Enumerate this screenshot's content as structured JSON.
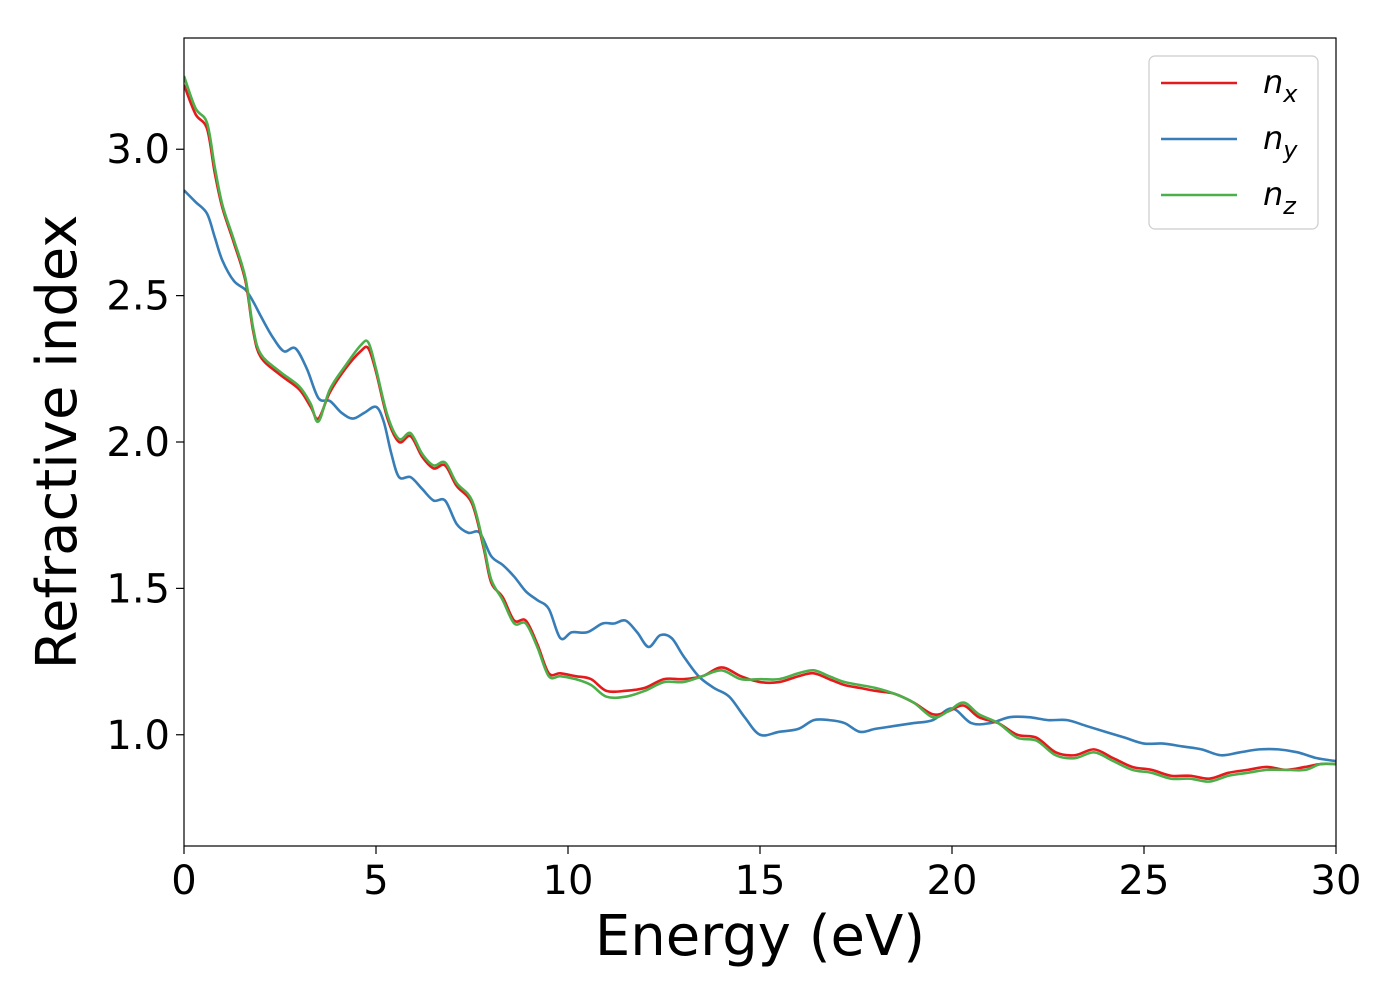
{
  "chart_data": {
    "type": "line",
    "title": "",
    "xlabel": "Energy (eV)",
    "ylabel": "Refractive index",
    "xlim": [
      0,
      30
    ],
    "ylim": [
      0.62,
      3.38
    ],
    "xticks": [
      0,
      5,
      10,
      15,
      20,
      25,
      30
    ],
    "xtick_labels": [
      "0",
      "5",
      "10",
      "15",
      "20",
      "25",
      "30"
    ],
    "yticks": [
      1.0,
      1.5,
      2.0,
      2.5,
      3.0
    ],
    "ytick_labels": [
      "1.0",
      "1.5",
      "2.0",
      "2.5",
      "3.0"
    ],
    "grid": false,
    "legend_position": "top-right",
    "series": [
      {
        "name": "n_x",
        "label_main": "n",
        "label_sub": "x",
        "color": "#e41a1c",
        "x": [
          0,
          0.3,
          0.6,
          0.8,
          1.0,
          1.3,
          1.6,
          1.8,
          2.0,
          2.5,
          3.0,
          3.3,
          3.5,
          3.8,
          4.2,
          4.6,
          4.8,
          5.0,
          5.3,
          5.6,
          5.9,
          6.2,
          6.5,
          6.8,
          7.1,
          7.5,
          7.8,
          8.0,
          8.3,
          8.6,
          8.9,
          9.2,
          9.5,
          9.8,
          10.2,
          10.6,
          11.0,
          11.5,
          12.0,
          12.5,
          13.0,
          13.5,
          14.0,
          14.5,
          15.0,
          15.5,
          16.0,
          16.4,
          16.8,
          17.2,
          17.6,
          18.0,
          18.5,
          19.0,
          19.5,
          19.9,
          20.3,
          20.7,
          21.2,
          21.7,
          22.2,
          22.7,
          23.2,
          23.7,
          24.2,
          24.7,
          25.2,
          25.7,
          26.2,
          26.7,
          27.2,
          27.7,
          28.2,
          28.7,
          29.2,
          29.6,
          30.0
        ],
        "y": [
          3.22,
          3.12,
          3.07,
          2.92,
          2.8,
          2.68,
          2.55,
          2.38,
          2.29,
          2.23,
          2.18,
          2.12,
          2.08,
          2.17,
          2.25,
          2.31,
          2.32,
          2.24,
          2.08,
          2.0,
          2.02,
          1.95,
          1.91,
          1.92,
          1.85,
          1.79,
          1.64,
          1.52,
          1.47,
          1.39,
          1.39,
          1.31,
          1.21,
          1.21,
          1.2,
          1.19,
          1.15,
          1.15,
          1.16,
          1.19,
          1.19,
          1.2,
          1.23,
          1.2,
          1.18,
          1.18,
          1.2,
          1.21,
          1.19,
          1.17,
          1.16,
          1.15,
          1.14,
          1.11,
          1.07,
          1.08,
          1.1,
          1.06,
          1.04,
          1.0,
          0.99,
          0.94,
          0.93,
          0.95,
          0.92,
          0.89,
          0.88,
          0.86,
          0.86,
          0.85,
          0.87,
          0.88,
          0.89,
          0.88,
          0.89,
          0.9,
          0.9
        ]
      },
      {
        "name": "n_y",
        "label_main": "n",
        "label_sub": "y",
        "color": "#377eb8",
        "x": [
          0,
          0.3,
          0.6,
          0.8,
          1.0,
          1.3,
          1.6,
          1.8,
          2.0,
          2.3,
          2.6,
          2.9,
          3.2,
          3.5,
          3.8,
          4.1,
          4.4,
          4.7,
          5.0,
          5.2,
          5.4,
          5.6,
          5.9,
          6.2,
          6.5,
          6.8,
          7.1,
          7.4,
          7.7,
          8.0,
          8.3,
          8.6,
          8.9,
          9.2,
          9.5,
          9.8,
          10.1,
          10.5,
          10.9,
          11.2,
          11.5,
          11.8,
          12.1,
          12.4,
          12.7,
          13.0,
          13.4,
          13.8,
          14.2,
          14.6,
          15.0,
          15.5,
          16.0,
          16.4,
          16.8,
          17.2,
          17.6,
          18.0,
          18.5,
          19.0,
          19.5,
          20.0,
          20.5,
          21.0,
          21.5,
          22.0,
          22.5,
          23.0,
          23.5,
          24.0,
          24.5,
          25.0,
          25.5,
          26.0,
          26.5,
          27.0,
          27.5,
          28.0,
          28.5,
          29.0,
          29.5,
          30.0
        ],
        "y": [
          2.86,
          2.82,
          2.78,
          2.7,
          2.62,
          2.55,
          2.52,
          2.48,
          2.43,
          2.36,
          2.31,
          2.32,
          2.25,
          2.15,
          2.14,
          2.1,
          2.08,
          2.1,
          2.12,
          2.07,
          1.96,
          1.88,
          1.88,
          1.84,
          1.8,
          1.8,
          1.72,
          1.69,
          1.69,
          1.61,
          1.58,
          1.54,
          1.49,
          1.46,
          1.43,
          1.33,
          1.35,
          1.35,
          1.38,
          1.38,
          1.39,
          1.35,
          1.3,
          1.34,
          1.33,
          1.27,
          1.2,
          1.16,
          1.13,
          1.06,
          1.0,
          1.01,
          1.02,
          1.05,
          1.05,
          1.04,
          1.01,
          1.02,
          1.03,
          1.04,
          1.05,
          1.09,
          1.04,
          1.04,
          1.06,
          1.06,
          1.05,
          1.05,
          1.03,
          1.01,
          0.99,
          0.97,
          0.97,
          0.96,
          0.95,
          0.93,
          0.94,
          0.95,
          0.95,
          0.94,
          0.92,
          0.91
        ]
      },
      {
        "name": "n_z",
        "label_main": "n",
        "label_sub": "z",
        "color": "#4daf4a",
        "x": [
          0,
          0.3,
          0.6,
          0.8,
          1.0,
          1.3,
          1.6,
          1.8,
          2.0,
          2.5,
          3.0,
          3.3,
          3.5,
          3.8,
          4.2,
          4.6,
          4.8,
          5.0,
          5.3,
          5.6,
          5.9,
          6.2,
          6.5,
          6.8,
          7.1,
          7.5,
          7.8,
          8.0,
          8.3,
          8.6,
          8.9,
          9.2,
          9.5,
          9.8,
          10.2,
          10.6,
          11.0,
          11.5,
          12.0,
          12.5,
          13.0,
          13.5,
          14.0,
          14.5,
          15.0,
          15.5,
          16.0,
          16.4,
          16.8,
          17.2,
          17.6,
          18.0,
          18.5,
          19.0,
          19.5,
          19.9,
          20.3,
          20.7,
          21.2,
          21.7,
          22.2,
          22.7,
          23.2,
          23.7,
          24.2,
          24.7,
          25.2,
          25.7,
          26.2,
          26.7,
          27.2,
          27.7,
          28.2,
          28.7,
          29.2,
          29.6,
          30.0
        ],
        "y": [
          3.25,
          3.14,
          3.09,
          2.94,
          2.81,
          2.69,
          2.56,
          2.39,
          2.3,
          2.24,
          2.19,
          2.13,
          2.07,
          2.18,
          2.26,
          2.33,
          2.34,
          2.25,
          2.09,
          2.01,
          2.03,
          1.96,
          1.92,
          1.93,
          1.86,
          1.8,
          1.65,
          1.53,
          1.46,
          1.38,
          1.38,
          1.3,
          1.2,
          1.2,
          1.19,
          1.17,
          1.13,
          1.13,
          1.15,
          1.18,
          1.18,
          1.2,
          1.22,
          1.19,
          1.19,
          1.19,
          1.21,
          1.22,
          1.2,
          1.18,
          1.17,
          1.16,
          1.14,
          1.11,
          1.06,
          1.08,
          1.11,
          1.07,
          1.04,
          0.99,
          0.98,
          0.93,
          0.92,
          0.94,
          0.91,
          0.88,
          0.87,
          0.85,
          0.85,
          0.84,
          0.86,
          0.87,
          0.88,
          0.88,
          0.88,
          0.9,
          0.9
        ]
      }
    ]
  }
}
